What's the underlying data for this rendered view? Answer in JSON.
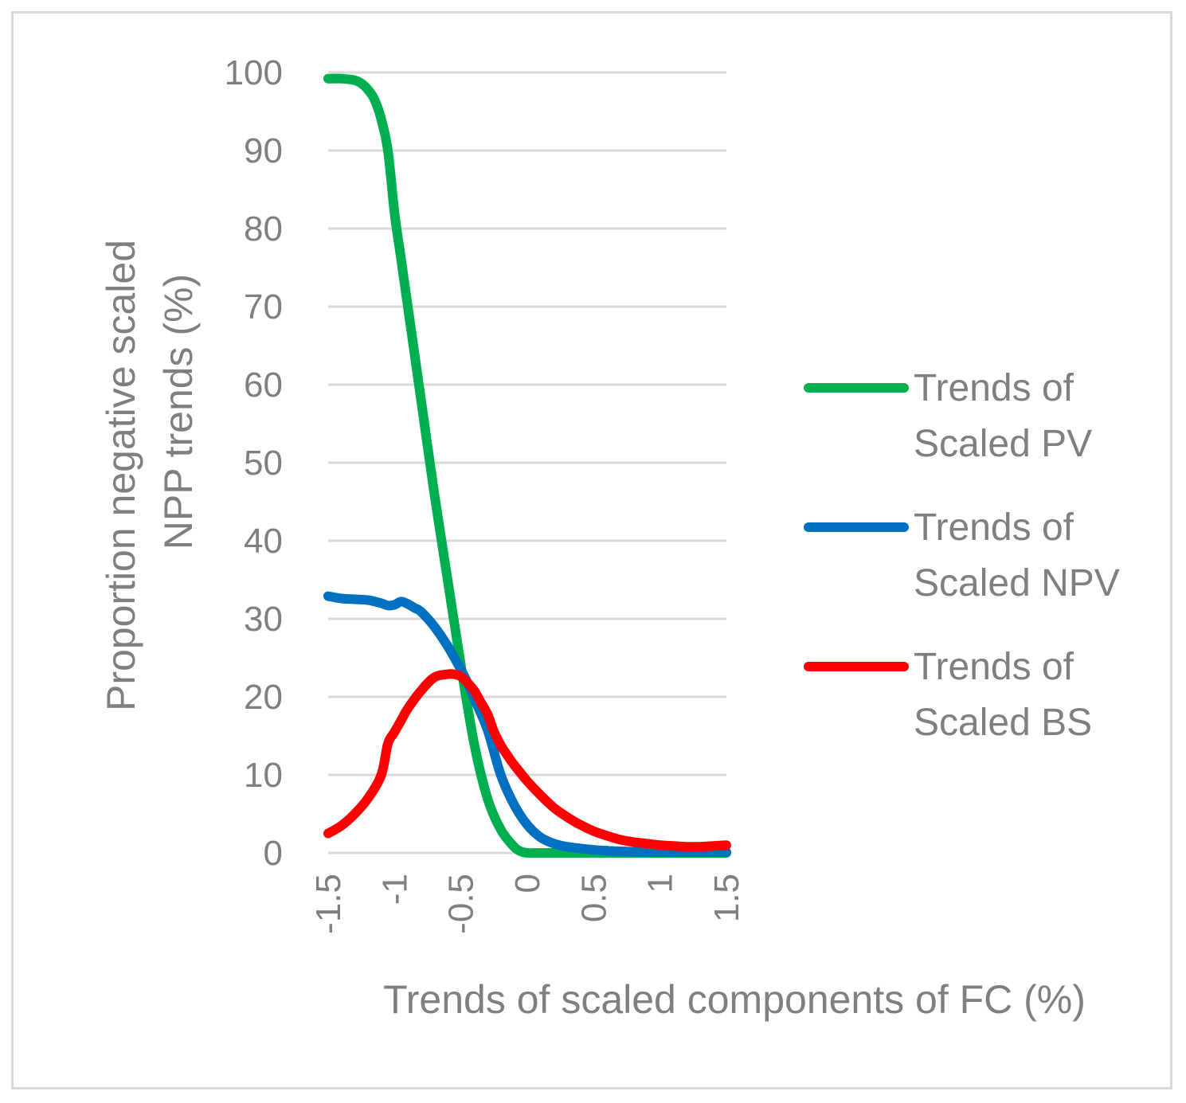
{
  "chart_data": {
    "type": "line",
    "title": "",
    "xlabel": "Trends of scaled components of FC (%)",
    "ylabel": [
      "Proportion negative scaled",
      "NPP trends (%)"
    ],
    "xlim": [
      -1.5,
      1.5
    ],
    "ylim": [
      0,
      100
    ],
    "xticks": [
      -1.5,
      -1,
      -0.5,
      0,
      0.5,
      1,
      1.5
    ],
    "xtick_labels": [
      "-1.5",
      "-1",
      "-0.5",
      "0",
      "0.5",
      "1",
      "1.5"
    ],
    "yticks": [
      0,
      10,
      20,
      30,
      40,
      50,
      60,
      70,
      80,
      90,
      100
    ],
    "ytick_labels": [
      "0",
      "10",
      "20",
      "30",
      "40",
      "50",
      "60",
      "70",
      "80",
      "90",
      "100"
    ],
    "grid": "horizontal",
    "legend_position": "right",
    "series": [
      {
        "name": "Trends of Scaled PV",
        "legend_lines": [
          "Trends of",
          "Scaled PV"
        ],
        "color": "#00b050",
        "x": [
          -1.5,
          -1.4,
          -1.3,
          -1.25,
          -1.2,
          -1.15,
          -1.1,
          -1.05,
          -1.0,
          -0.95,
          -0.9,
          -0.8,
          -0.7,
          -0.6,
          -0.5,
          -0.4,
          -0.3,
          -0.2,
          -0.1,
          -0.05,
          0.0,
          0.05,
          0.1,
          0.2,
          0.5,
          1.0,
          1.5
        ],
        "y": [
          99.2,
          99.2,
          99.0,
          98.6,
          97.8,
          96.5,
          94.0,
          90.0,
          82.0,
          76.0,
          70.0,
          58.0,
          46.0,
          35.0,
          24.0,
          14.0,
          7.0,
          3.0,
          0.8,
          0.2,
          0.0,
          0.0,
          0.0,
          0.0,
          0.0,
          0.0,
          0.0
        ]
      },
      {
        "name": "Trends of Scaled NPV",
        "legend_lines": [
          "Trends of",
          "Scaled NPV"
        ],
        "color": "#0070c0",
        "x": [
          -1.5,
          -1.4,
          -1.3,
          -1.2,
          -1.1,
          -1.05,
          -1.0,
          -0.95,
          -0.9,
          -0.85,
          -0.8,
          -0.7,
          -0.6,
          -0.5,
          -0.45,
          -0.4,
          -0.3,
          -0.2,
          -0.1,
          0.0,
          0.1,
          0.2,
          0.3,
          0.5,
          0.7,
          1.0,
          1.3,
          1.5
        ],
        "y": [
          32.9,
          32.6,
          32.5,
          32.4,
          32.0,
          31.7,
          31.8,
          32.2,
          31.9,
          31.4,
          30.9,
          29.0,
          26.5,
          23.5,
          21.8,
          19.8,
          15.8,
          10.0,
          6.2,
          3.6,
          2.0,
          1.2,
          0.8,
          0.4,
          0.2,
          0.1,
          0.1,
          0.1
        ]
      },
      {
        "name": "Trends of Scaled BS",
        "legend_lines": [
          "Trends of",
          "Scaled BS"
        ],
        "color": "#ff0000",
        "x": [
          -1.5,
          -1.4,
          -1.3,
          -1.2,
          -1.1,
          -1.05,
          -1.0,
          -0.95,
          -0.9,
          -0.8,
          -0.7,
          -0.6,
          -0.55,
          -0.5,
          -0.45,
          -0.4,
          -0.35,
          -0.3,
          -0.25,
          -0.2,
          -0.15,
          -0.1,
          0.0,
          0.1,
          0.2,
          0.3,
          0.4,
          0.5,
          0.6,
          0.7,
          0.8,
          0.9,
          1.0,
          1.1,
          1.2,
          1.3,
          1.4,
          1.5
        ],
        "y": [
          2.5,
          3.5,
          5.0,
          7.0,
          10.0,
          14.0,
          15.5,
          17.0,
          18.5,
          20.8,
          22.5,
          22.9,
          22.9,
          22.6,
          21.8,
          20.8,
          19.3,
          17.8,
          15.5,
          13.8,
          12.5,
          11.3,
          9.2,
          7.4,
          5.8,
          4.6,
          3.6,
          2.8,
          2.2,
          1.7,
          1.4,
          1.2,
          1.0,
          0.9,
          0.8,
          0.8,
          0.9,
          1.0
        ]
      }
    ]
  }
}
